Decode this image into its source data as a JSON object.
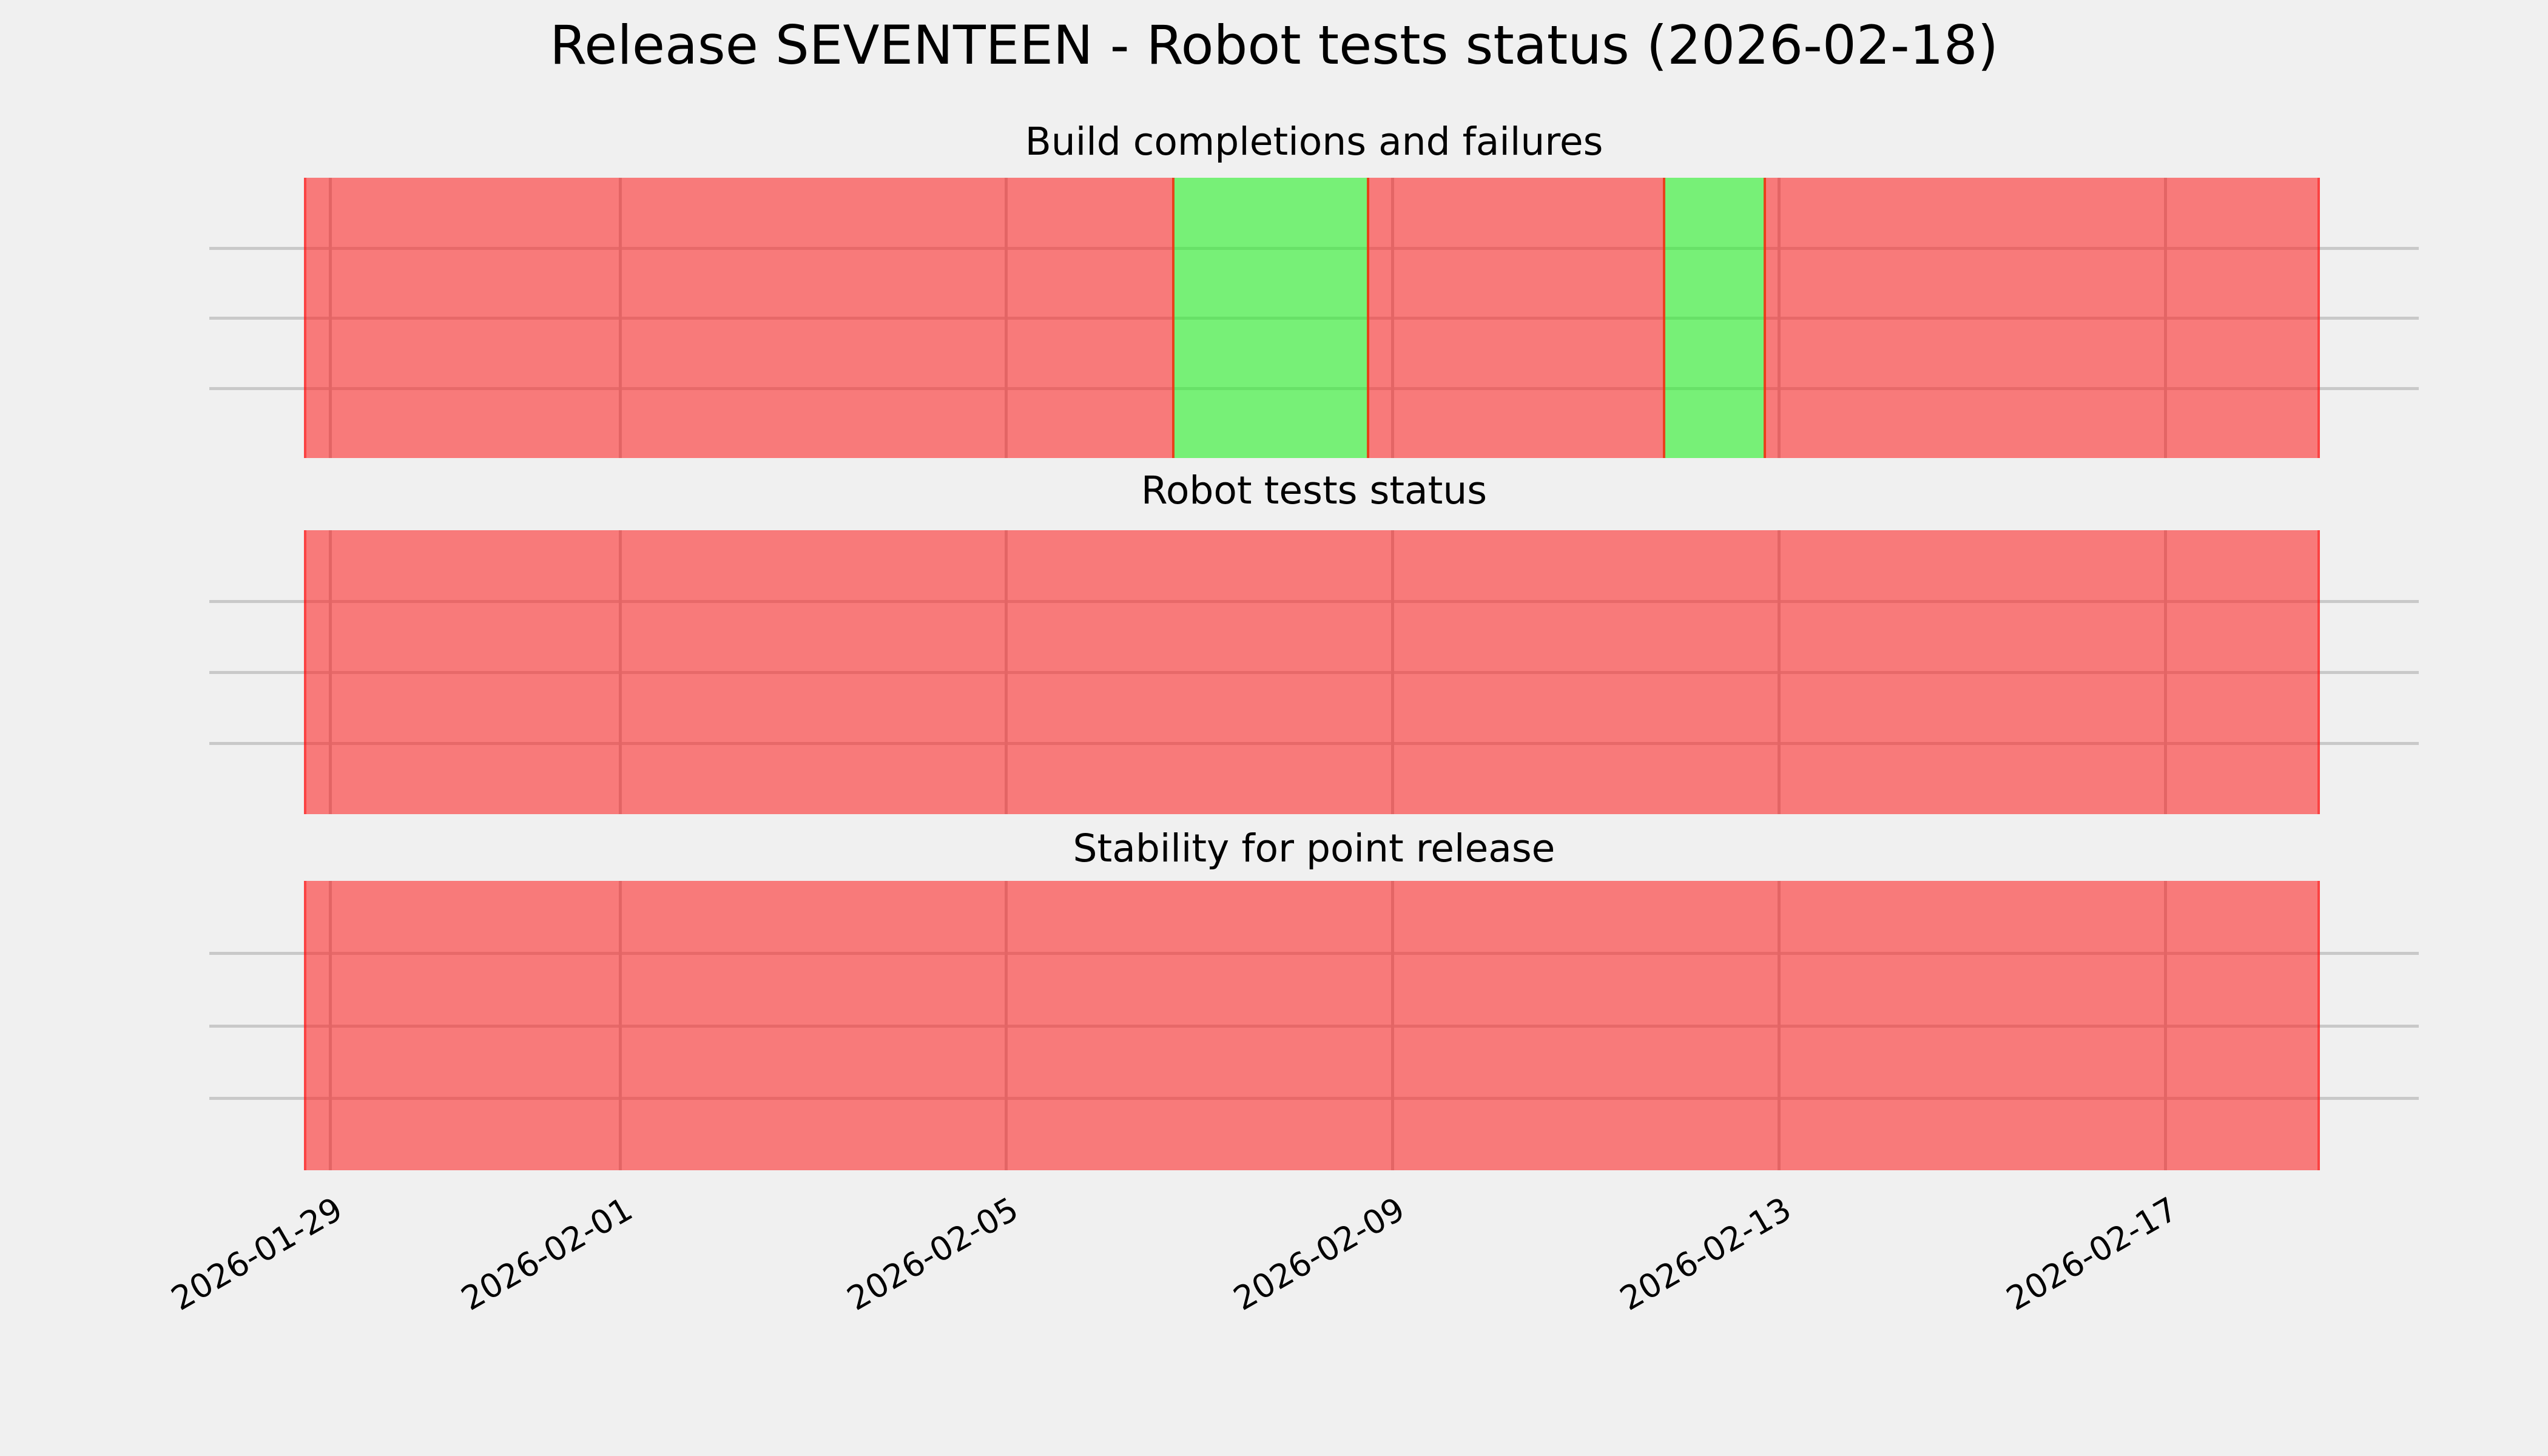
{
  "title": "Release SEVENTEEN - Robot tests status (2026-02-18)",
  "background_color": "#f0f0f0",
  "grid_color": "#c9c9c9",
  "text_color": "#000000",
  "chart_data": {
    "type": "bar",
    "subtype": "status-timeline",
    "title": "Release SEVENTEEN - Robot tests status (2026-02-18)",
    "grid": "on",
    "legend": "none",
    "status_colors": {
      "pass": "#78f378",
      "fail": "#f57373"
    },
    "x_axis": {
      "tick_labels": [
        "2026-01-29",
        "2026-02-01",
        "2026-02-05",
        "2026-02-09",
        "2026-02-13",
        "2026-02-17"
      ],
      "tick_rotation_deg": 30,
      "data_start": "2026-01-28T17:30",
      "data_end": "2026-02-18T14:30"
    },
    "y_axis": {
      "tick_labels": [],
      "gridlines_per_subplot": 3
    },
    "subplots": [
      {
        "title": "Build completions and failures",
        "segments": [
          {
            "status": "fail",
            "from": "2026-01-28T17:30",
            "to": "2026-02-06T17:30"
          },
          {
            "status": "pass",
            "from": "2026-02-06T17:30",
            "to": "2026-02-08T18:00"
          },
          {
            "status": "fail",
            "from": "2026-02-08T18:00",
            "to": "2026-02-11T19:30"
          },
          {
            "status": "pass",
            "from": "2026-02-11T19:30",
            "to": "2026-02-12T20:30"
          },
          {
            "status": "fail",
            "from": "2026-02-12T20:30",
            "to": "2026-02-18T14:30"
          }
        ]
      },
      {
        "title": "Robot tests status",
        "segments": [
          {
            "status": "fail",
            "from": "2026-01-28T17:30",
            "to": "2026-02-18T14:30"
          }
        ]
      },
      {
        "title": "Stability for point release",
        "segments": [
          {
            "status": "fail",
            "from": "2026-01-28T17:30",
            "to": "2026-02-18T14:30"
          }
        ]
      }
    ]
  }
}
